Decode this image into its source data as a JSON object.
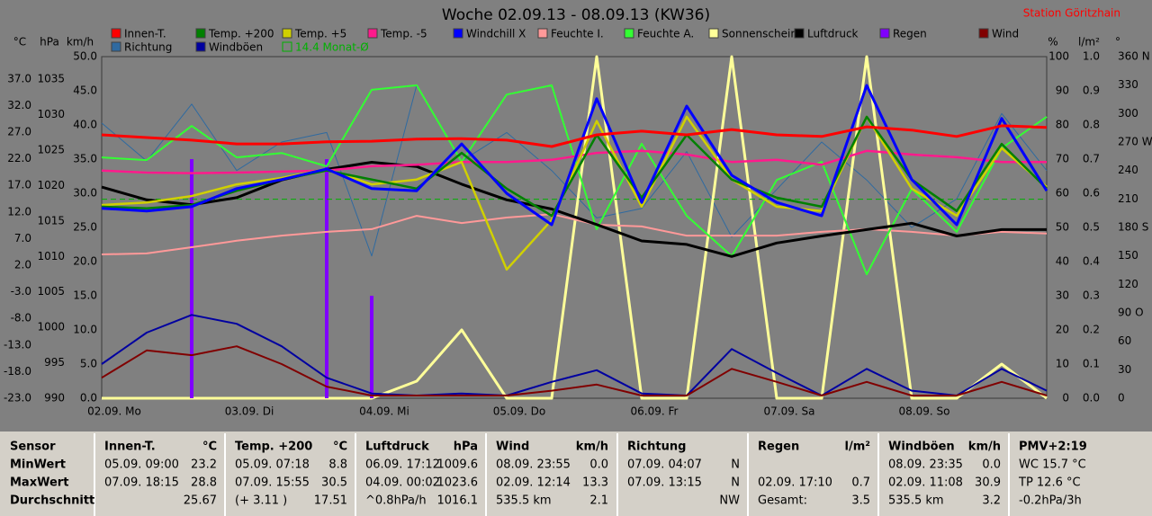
{
  "title": "Woche 02.09.13 - 08.09.13 (KW36)",
  "station": "Station Göritzhain",
  "chart_data": {
    "type": "line",
    "categories": [
      "02.09. Mo",
      null,
      null,
      "03.09. Di",
      null,
      null,
      "04.09. Mi",
      null,
      null,
      "05.09. Do",
      null,
      null,
      "06.09. Fr",
      null,
      null,
      "07.09. Sa",
      null,
      null,
      "08.09. So",
      null,
      null,
      null
    ],
    "axes": {
      "temp": {
        "unit": "°C",
        "lim": [
          -23,
          41.2
        ],
        "ticks": [
          {
            "value": -23,
            "label": "-23.0"
          },
          {
            "value": -18,
            "label": "-18.0"
          },
          {
            "value": -13,
            "label": "-13.0"
          },
          {
            "value": -8,
            "label": "-8.0"
          },
          {
            "value": -3,
            "label": "-3.0"
          },
          {
            "value": 2,
            "label": "2.0"
          },
          {
            "value": 7,
            "label": "7.0"
          },
          {
            "value": 12,
            "label": "12.0"
          },
          {
            "value": 17,
            "label": "17.0"
          },
          {
            "value": 22,
            "label": "22.0"
          },
          {
            "value": 27,
            "label": "27.0"
          },
          {
            "value": 32,
            "label": "32.0"
          },
          {
            "value": 37,
            "label": "37.0"
          }
        ]
      },
      "pressure": {
        "unit": "hPa",
        "lim": [
          990,
          1038.2
        ],
        "ticks": [
          990,
          995,
          1000,
          1005,
          1010,
          1015,
          1020,
          1025,
          1030,
          1035
        ]
      },
      "speed": {
        "unit": "km/h",
        "lim": [
          0,
          50
        ],
        "ticks": [
          {
            "value": 0,
            "label": "0.0"
          },
          {
            "value": 5,
            "label": "5.0"
          },
          {
            "value": 10,
            "label": "10.0"
          },
          {
            "value": 15,
            "label": "15.0"
          },
          {
            "value": 20,
            "label": "20.0"
          },
          {
            "value": 25,
            "label": "25.0"
          },
          {
            "value": 30,
            "label": "30.0"
          },
          {
            "value": 35,
            "label": "35.0"
          },
          {
            "value": 40,
            "label": "40.0"
          },
          {
            "value": 45,
            "label": "45.0"
          },
          {
            "value": 50,
            "label": "50.0"
          }
        ]
      },
      "humidity": {
        "unit": "%",
        "lim": [
          0,
          100
        ],
        "ticks": [
          0,
          10,
          20,
          30,
          40,
          50,
          60,
          70,
          80,
          90,
          100
        ]
      },
      "rain": {
        "unit": "l/m²",
        "lim": [
          0,
          1
        ],
        "ticks": [
          {
            "value": 0,
            "label": "0.0"
          },
          0.1,
          0.2,
          0.3,
          0.4,
          0.5,
          0.6,
          0.7,
          0.8,
          0.9,
          {
            "value": 1,
            "label": "1.0"
          }
        ]
      },
      "direction": {
        "unit": "°",
        "lim": [
          0,
          360
        ],
        "ticks": [
          0,
          30,
          60,
          {
            "value": 90,
            "label": "90 O"
          },
          120,
          150,
          {
            "value": 180,
            "label": "180 S"
          },
          210,
          240,
          {
            "value": 270,
            "label": "270 W"
          },
          300,
          330,
          {
            "value": 360,
            "label": "360 N"
          }
        ]
      }
    },
    "series": [
      {
        "name": "Innen-T.",
        "color": "#ff0000",
        "axis": "temp",
        "values": [
          26.5,
          26.0,
          25.5,
          24.8,
          24.8,
          25.2,
          25.3,
          25.7,
          25.8,
          25.5,
          24.3,
          26.5,
          27.2,
          26.5,
          27.5,
          26.5,
          26.2,
          28.0,
          27.4,
          26.2,
          28.2,
          27.9
        ]
      },
      {
        "name": "Richtung",
        "color": "#2f6aa0",
        "axis": "direction",
        "values": [
          290,
          250,
          310,
          240,
          270,
          280,
          150,
          330,
          250,
          280,
          240,
          190,
          200,
          260,
          170,
          220,
          270,
          230,
          180,
          210,
          300,
          240
        ]
      },
      {
        "name": "Temp. +200",
        "color": "#008000",
        "axis": "temp",
        "values": [
          13.0,
          12.7,
          13.3,
          16.0,
          18.1,
          19.8,
          18.1,
          16.4,
          23.1,
          16.4,
          11.3,
          26.5,
          14.7,
          26.5,
          18.1,
          14.7,
          13.0,
          29.9,
          18.1,
          12.2,
          24.8,
          16.4
        ]
      },
      {
        "name": "Windböen",
        "color": "#0000a0",
        "axis": "speed",
        "values": [
          5.0,
          9.6,
          12.2,
          10.9,
          7.6,
          3.0,
          0.7,
          0.4,
          0.7,
          0.4,
          2.4,
          4.1,
          0.7,
          0.4,
          7.2,
          3.7,
          0.4,
          4.3,
          1.1,
          0.4,
          4.3,
          1.1
        ]
      },
      {
        "name": "Temp. +5",
        "color": "#d0d000",
        "axis": "temp",
        "values": [
          13.3,
          13.8,
          15.0,
          17.2,
          18.4,
          20.1,
          17.2,
          18.1,
          21.4,
          1.2,
          10.5,
          29.1,
          13.0,
          29.9,
          18.1,
          13.0,
          12.2,
          29.9,
          16.4,
          11.3,
          24.0,
          16.7
        ]
      },
      {
        "name": "14.4 Monat-Ø",
        "color": "#00b000",
        "axis": "temp",
        "value": 14.4
      },
      {
        "name": "Temp. -5",
        "color": "#ff1a8c",
        "axis": "temp",
        "values": [
          19.8,
          19.4,
          19.3,
          19.4,
          19.6,
          19.8,
          20.6,
          20.9,
          21.4,
          21.4,
          21.8,
          23.1,
          23.5,
          22.8,
          21.4,
          21.8,
          20.9,
          23.5,
          22.8,
          22.3,
          21.4,
          21.4
        ]
      },
      {
        "name": "Windchill X",
        "color": "#0000ff",
        "axis": "temp",
        "values": [
          12.7,
          12.2,
          13.0,
          16.4,
          18.1,
          20.1,
          16.4,
          16.0,
          24.8,
          15.5,
          9.6,
          33.3,
          13.8,
          31.9,
          18.9,
          13.8,
          11.3,
          35.8,
          18.1,
          9.6,
          29.6,
          16.0
        ]
      },
      {
        "name": "Feuchte I.",
        "color": "#ff9999",
        "axis": "humidity",
        "values": [
          42.1,
          42.4,
          44.2,
          46.1,
          47.6,
          48.7,
          49.5,
          53.4,
          51.3,
          52.9,
          53.9,
          50.8,
          50.3,
          47.6,
          47.6,
          47.6,
          48.7,
          49.5,
          48.7,
          47.6,
          48.7,
          48.2
        ]
      },
      {
        "name": "Feuchte A.",
        "color": "#33ff33",
        "axis": "humidity",
        "values": [
          70.5,
          69.7,
          79.7,
          70.5,
          71.8,
          67.9,
          90.3,
          91.6,
          69.2,
          88.9,
          91.6,
          49.5,
          74.5,
          53.4,
          41.6,
          63.9,
          69.2,
          36.3,
          61.3,
          48.7,
          73.2,
          82.4
        ]
      },
      {
        "name": "Sonnenschein",
        "color": "#ffff99",
        "axis": "humidity",
        "values": [
          0,
          0,
          0,
          0,
          0,
          0,
          0,
          5,
          20,
          0,
          0,
          100,
          0,
          0,
          100,
          0,
          0,
          100,
          0,
          0,
          10,
          0
        ]
      },
      {
        "name": "Luftdruck",
        "color": "#000000",
        "axis": "pressure",
        "values": [
          1019.8,
          1018.0,
          1017.3,
          1018.3,
          1020.8,
          1022.3,
          1023.3,
          1022.7,
          1020.2,
          1018.0,
          1016.7,
          1014.5,
          1012.2,
          1011.7,
          1010.0,
          1011.9,
          1012.9,
          1013.8,
          1014.7,
          1012.9,
          1013.8,
          1013.8
        ]
      },
      {
        "name": "Regen",
        "color": "#8000ff",
        "axis": "rain",
        "bars": true,
        "values": [
          0,
          0,
          0.7,
          0,
          0,
          0.7,
          0.3,
          0,
          0,
          0,
          0,
          0,
          0,
          0,
          0,
          0,
          0,
          0,
          0,
          0,
          0,
          0
        ]
      },
      {
        "name": "Wind",
        "color": "#800000",
        "axis": "speed",
        "values": [
          3.0,
          7.0,
          6.3,
          7.6,
          5.0,
          1.7,
          0.4,
          0.4,
          0.4,
          0.4,
          1.1,
          2.0,
          0.4,
          0.4,
          4.3,
          2.4,
          0.4,
          2.4,
          0.4,
          0.4,
          2.4,
          0.4
        ]
      }
    ]
  },
  "table": {
    "row_header": "Sensor",
    "row_labels": [
      "MinWert",
      "MaxWert",
      "Durchschnitt"
    ],
    "columns": [
      {
        "header": "Innen-T.",
        "unit": "°C",
        "rows": [
          {
            "left": "05.09.  09:00",
            "right": "23.2"
          },
          {
            "left": "07.09.  18:15",
            "right": "28.8"
          },
          {
            "right": "25.67"
          }
        ]
      },
      {
        "header": "Temp. +200",
        "unit": "°C",
        "rows": [
          {
            "left": "05.09.  07:18",
            "right": "8.8"
          },
          {
            "left": "07.09.  15:55",
            "right": "30.5"
          },
          {
            "left": "(+ 3.11 )",
            "right": "17.51"
          }
        ]
      },
      {
        "header": "Luftdruck",
        "unit": "hPa",
        "rows": [
          {
            "left": "06.09.  17:12",
            "right": "1009.6"
          },
          {
            "left": "04.09.  00:02",
            "right": "1023.6"
          },
          {
            "left": "^0.8hPa/h",
            "right": "1016.1"
          }
        ]
      },
      {
        "header": "Wind",
        "unit": "km/h",
        "rows": [
          {
            "left": "08.09.  23:55",
            "right": "0.0"
          },
          {
            "left": "02.09.  12:14",
            "right": "13.3"
          },
          {
            "left": "535.5 km",
            "right": "2.1"
          }
        ]
      },
      {
        "header": "Richtung",
        "rows": [
          {
            "left": "07.09.  04:07",
            "right": "N"
          },
          {
            "left": "07.09.  13:15",
            "right": "N"
          },
          {
            "right": "NW"
          }
        ]
      },
      {
        "header": "Regen",
        "unit": "l/m²",
        "rows": [
          {},
          {
            "left": "02.09.  17:10",
            "right": "0.7"
          },
          {
            "left": "Gesamt:",
            "right": "3.5"
          }
        ]
      },
      {
        "header": "Windböen",
        "unit": "km/h",
        "rows": [
          {
            "left": "08.09.  23:35",
            "right": "0.0"
          },
          {
            "left": "02.09.  11:08",
            "right": "30.9"
          },
          {
            "left": "535.5 km",
            "right": "3.2"
          }
        ]
      },
      {
        "header": "PMV+2:19",
        "rows": [
          {
            "left": "WC 15.7 °C"
          },
          {
            "left": "TP 12.6 °C"
          },
          {
            "left": "-0.2hPa/3h"
          }
        ]
      }
    ]
  }
}
